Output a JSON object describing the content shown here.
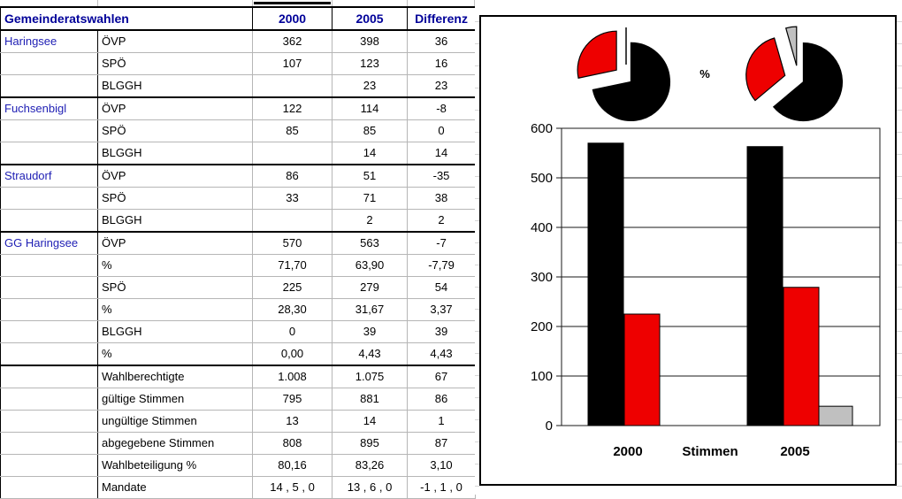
{
  "table": {
    "header": {
      "title": "Gemeinderatswahlen",
      "col_2000": "2000",
      "col_2005": "2005",
      "col_diff": "Differenz"
    },
    "rows": [
      {
        "group": "Haringsee",
        "label": "ÖVP",
        "y2000": "362",
        "y2005": "398",
        "diff": "36",
        "thick": false
      },
      {
        "group": "",
        "label": "SPÖ",
        "y2000": "107",
        "y2005": "123",
        "diff": "16",
        "thick": false
      },
      {
        "group": "",
        "label": "BLGGH",
        "y2000": "",
        "y2005": "23",
        "diff": "23",
        "thick": true
      },
      {
        "group": "Fuchsenbigl",
        "label": "ÖVP",
        "y2000": "122",
        "y2005": "114",
        "diff": "-8",
        "thick": false
      },
      {
        "group": "",
        "label": "SPÖ",
        "y2000": "85",
        "y2005": "85",
        "diff": "0",
        "thick": false
      },
      {
        "group": "",
        "label": "BLGGH",
        "y2000": "",
        "y2005": "14",
        "diff": "14",
        "thick": true
      },
      {
        "group": "Straudorf",
        "label": "ÖVP",
        "y2000": "86",
        "y2005": "51",
        "diff": "-35",
        "thick": false
      },
      {
        "group": "",
        "label": "SPÖ",
        "y2000": "33",
        "y2005": "71",
        "diff": "38",
        "thick": false
      },
      {
        "group": "",
        "label": "BLGGH",
        "y2000": "",
        "y2005": "2",
        "diff": "2",
        "thick": true
      },
      {
        "group": "GG Haringsee",
        "label": "ÖVP",
        "y2000": "570",
        "y2005": "563",
        "diff": "-7",
        "thick": false
      },
      {
        "group": "",
        "label": "%",
        "y2000": "71,70",
        "y2005": "63,90",
        "diff": "-7,79",
        "thick": false
      },
      {
        "group": "",
        "label": "SPÖ",
        "y2000": "225",
        "y2005": "279",
        "diff": "54",
        "thick": false
      },
      {
        "group": "",
        "label": "%",
        "y2000": "28,30",
        "y2005": "31,67",
        "diff": "3,37",
        "thick": false
      },
      {
        "group": "",
        "label": "BLGGH",
        "y2000": "0",
        "y2005": "39",
        "diff": "39",
        "thick": false
      },
      {
        "group": "",
        "label": "%",
        "y2000": "0,00",
        "y2005": "4,43",
        "diff": "4,43",
        "thick": true
      },
      {
        "group": "",
        "label": "Wahlberechtigte",
        "y2000": "1.008",
        "y2005": "1.075",
        "diff": "67",
        "thick": false
      },
      {
        "group": "",
        "label": "gültige Stimmen",
        "y2000": "795",
        "y2005": "881",
        "diff": "86",
        "thick": false
      },
      {
        "group": "",
        "label": "ungültige Stimmen",
        "y2000": "13",
        "y2005": "14",
        "diff": "1",
        "thick": false
      },
      {
        "group": "",
        "label": "abgegebene Stimmen",
        "y2000": "808",
        "y2005": "895",
        "diff": "87",
        "thick": false
      },
      {
        "group": "",
        "label": "Wahlbeteiligung %",
        "y2000": "80,16",
        "y2005": "83,26",
        "diff": "3,10",
        "thick": false
      },
      {
        "group": "",
        "label": "Mandate",
        "y2000": "14 , 5 , 0",
        "y2005": "13 , 6 , 0",
        "diff": "-1 , 1 , 0",
        "thick": false
      }
    ]
  },
  "chart_data": [
    {
      "type": "pie",
      "name": "anteile-2000",
      "center_label": "%",
      "labels": [
        "ÖVP",
        "SPÖ",
        "BLGGH"
      ],
      "values": [
        71.7,
        28.3,
        0.0
      ],
      "colors": [
        "#000000",
        "#ee0000",
        "#c0c0c0"
      ],
      "exploded": true
    },
    {
      "type": "pie",
      "name": "anteile-2005",
      "labels": [
        "ÖVP",
        "SPÖ",
        "BLGGH"
      ],
      "values": [
        63.9,
        31.67,
        4.43
      ],
      "colors": [
        "#000000",
        "#ee0000",
        "#c0c0c0"
      ],
      "exploded": true
    },
    {
      "type": "bar",
      "name": "stimmen",
      "categories": [
        "2000",
        "Stimmen",
        "2005"
      ],
      "series": [
        {
          "name": "ÖVP",
          "color": "#000000",
          "values": [
            570,
            null,
            563
          ]
        },
        {
          "name": "SPÖ",
          "color": "#ee0000",
          "values": [
            225,
            null,
            279
          ]
        },
        {
          "name": "BLGGH",
          "color": "#c0c0c0",
          "values": [
            null,
            null,
            39
          ]
        }
      ],
      "ylim": [
        0,
        600
      ],
      "yticks": [
        0,
        100,
        200,
        300,
        400,
        500,
        600
      ],
      "grid": true,
      "legend": "none"
    }
  ]
}
